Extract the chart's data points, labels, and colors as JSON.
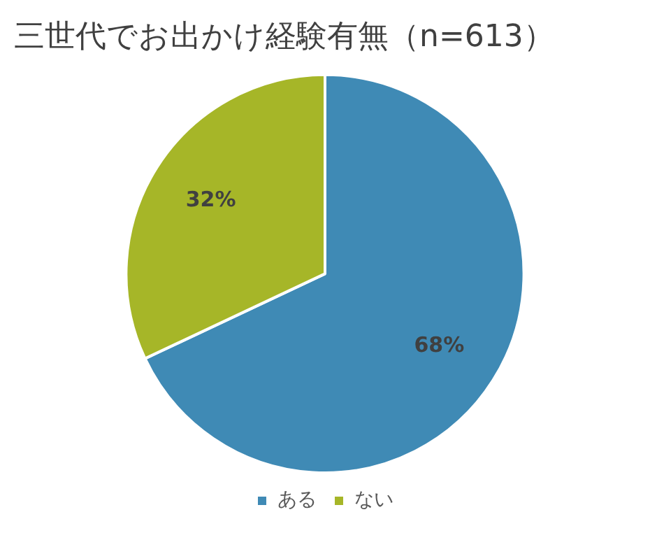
{
  "chart_data": {
    "type": "pie",
    "title": "三世代でお出かけ経験有無（n=613）",
    "categories": [
      "ある",
      "ない"
    ],
    "values": [
      68,
      32
    ],
    "colors": [
      "#3f8ab5",
      "#a6b628"
    ],
    "value_labels": [
      "68%",
      "32%"
    ],
    "legend": "bottom"
  }
}
